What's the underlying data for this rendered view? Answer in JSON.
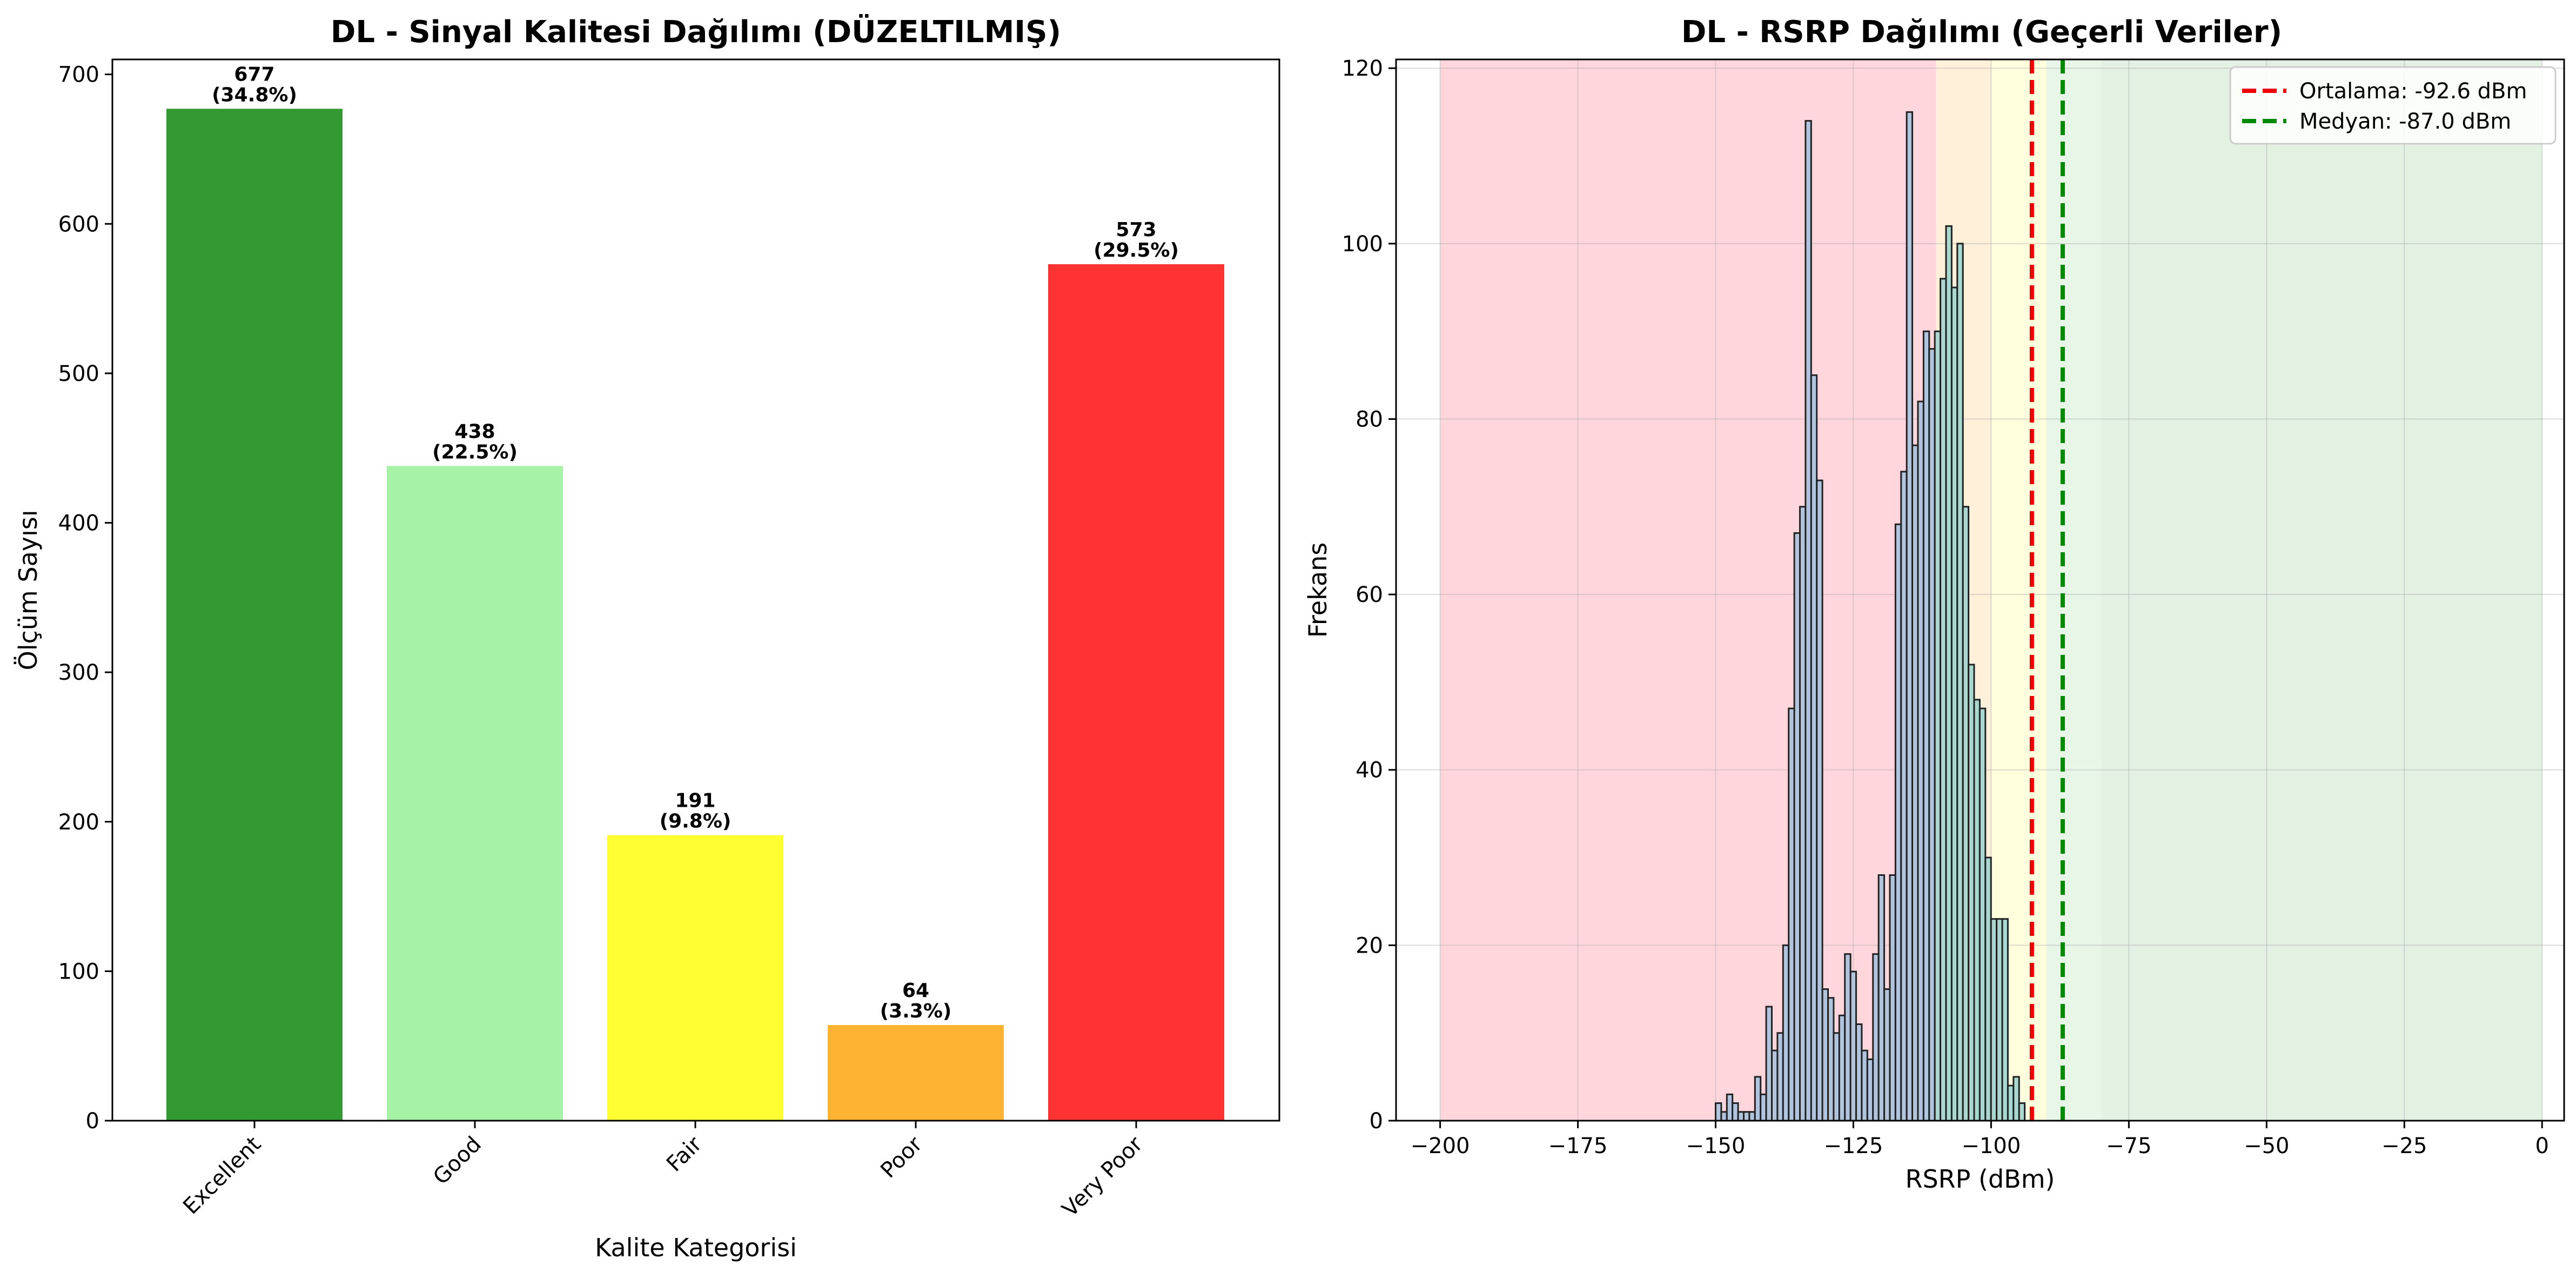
{
  "chart_data": [
    {
      "type": "bar",
      "title": "DL - Sinyal Kalitesi Dağılımı (DÜZELTILMIŞ)",
      "xlabel": "Kalite Kategorisi",
      "ylabel": "Ölçüm Sayısı",
      "categories": [
        "Excellent",
        "Good",
        "Fair",
        "Poor",
        "Very Poor"
      ],
      "values": [
        677,
        438,
        191,
        64,
        573
      ],
      "value_labels": [
        "677",
        "438",
        "191",
        "64",
        "573"
      ],
      "percent_labels": [
        "(34.8%)",
        "(22.5%)",
        "(9.8%)",
        "(3.3%)",
        "(29.5%)"
      ],
      "colors": [
        "#339933",
        "#a6f2a6",
        "#ffff33",
        "#ffb333",
        "#ff3333"
      ],
      "ylim": [
        0,
        710
      ],
      "yticks": [
        0,
        100,
        200,
        300,
        400,
        500,
        600,
        700
      ],
      "ytick_labels": [
        "0",
        "100",
        "200",
        "300",
        "400",
        "500",
        "600",
        "700"
      ],
      "xtick_rotation": 45,
      "grid": false
    },
    {
      "type": "histogram",
      "title": "DL - RSRP Dağılımı (Geçerli Veriler)",
      "xlabel": "RSRP (dBm)",
      "ylabel": "Frekans",
      "xlim": [
        -208,
        4
      ],
      "ylim": [
        0,
        121
      ],
      "xticks": [
        -200,
        -175,
        -150,
        -125,
        -100,
        -75,
        -50,
        -25,
        0
      ],
      "xtick_labels": [
        "−200",
        "−175",
        "−150",
        "−125",
        "−100",
        "−75",
        "−50",
        "−25",
        "0"
      ],
      "yticks": [
        0,
        20,
        40,
        60,
        80,
        100,
        120
      ],
      "ytick_labels": [
        "0",
        "20",
        "40",
        "60",
        "80",
        "100",
        "120"
      ],
      "grid": true,
      "bin_start": -150,
      "bin_width": 1.02,
      "counts": [
        2,
        1,
        3,
        2,
        1,
        1,
        1,
        5,
        3,
        13,
        8,
        10,
        20,
        47,
        67,
        70,
        114,
        85,
        73,
        15,
        14,
        10,
        12,
        19,
        17,
        11,
        8,
        7,
        19,
        28,
        15,
        28,
        68,
        74,
        115,
        77,
        82,
        90,
        88,
        90,
        96,
        102,
        95,
        100,
        70,
        52,
        48,
        47,
        30,
        23,
        23,
        23,
        4,
        5,
        2,
        0,
        0,
        0
      ],
      "bar_colors": {
        "below_-110": "#b0c4de",
        "between_-110_-90": "#a8d8d0",
        "above_-90": "#8fd3d3"
      },
      "zones": [
        {
          "from": -200,
          "to": -110,
          "color": "#ffd6dc"
        },
        {
          "from": -110,
          "to": -100,
          "color": "#fff1d9"
        },
        {
          "from": -100,
          "to": -90,
          "color": "#ffffdd"
        },
        {
          "from": -90,
          "to": -80,
          "color": "#e7f6e7"
        },
        {
          "from": -80,
          "to": 0,
          "color": "#e3f1e3"
        }
      ],
      "lines": [
        {
          "label": "Ortalama: -92.6 dBm",
          "x": -92.6,
          "color": "#ee0000"
        },
        {
          "label": "Medyan: -87.0 dBm",
          "x": -87.0,
          "color": "#008800"
        }
      ],
      "legend": "top-right"
    }
  ]
}
